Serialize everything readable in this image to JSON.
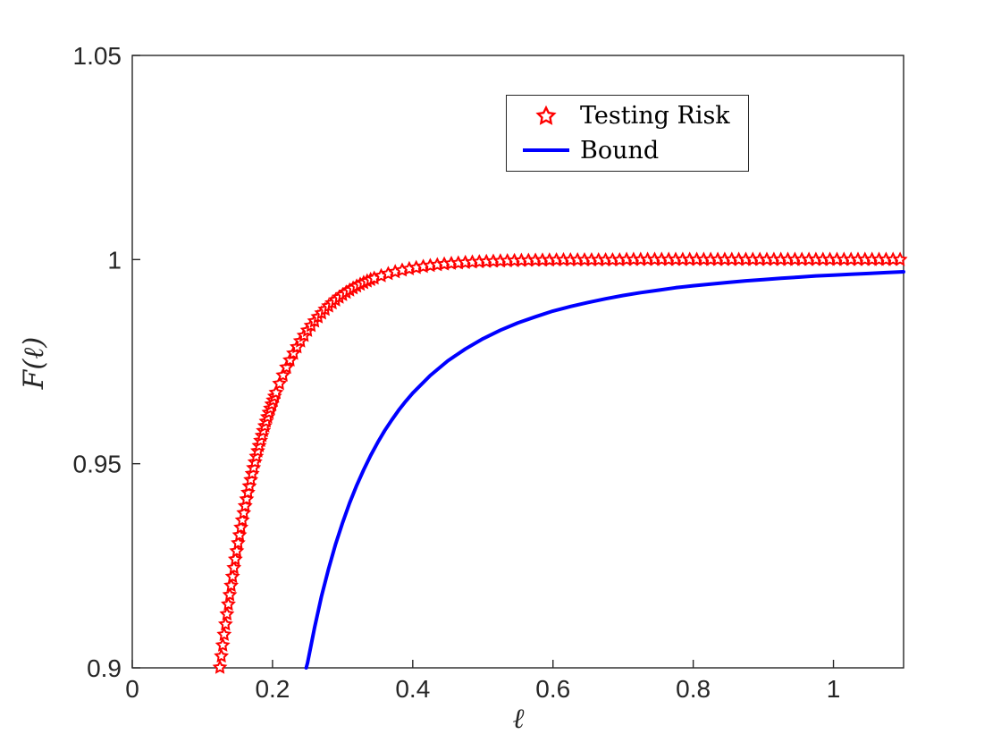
{
  "figure": {
    "background": "#ffffff",
    "axis_color": "#262626"
  },
  "chart_data": {
    "type": "line",
    "title": "",
    "xlabel": "ℓ",
    "ylabel": "F(ℓ)",
    "xlim": [
      0,
      1.1
    ],
    "ylim": [
      0.9,
      1.05
    ],
    "xticks": [
      0,
      0.2,
      0.4,
      0.6,
      0.8,
      1
    ],
    "xtick_labels": [
      "0",
      "0.2",
      "0.4",
      "0.6",
      "0.8",
      "1"
    ],
    "yticks": [
      0.9,
      0.95,
      1,
      1.05
    ],
    "ytick_labels": [
      "0.9",
      "0.95",
      "1",
      "1.05"
    ],
    "grid": false,
    "axis_color": "#262626",
    "legend": {
      "location": "top-center",
      "border": true,
      "entries": [
        "Testing Risk",
        "Bound"
      ]
    },
    "series": [
      {
        "id": "testing-risk",
        "name": "Testing Risk",
        "type": "scatter",
        "marker": "pentagram",
        "color": "#ff0000",
        "marker_size": 6.6,
        "marker_stroke": 2,
        "points": [
          [
            0.125,
            0.9001
          ],
          [
            0.127,
            0.90286
          ],
          [
            0.129,
            0.90554
          ],
          [
            0.131,
            0.90815
          ],
          [
            0.133,
            0.91068
          ],
          [
            0.135,
            0.91315
          ],
          [
            0.137,
            0.91555
          ],
          [
            0.139,
            0.91788
          ],
          [
            0.141,
            0.92015
          ],
          [
            0.143,
            0.92235
          ],
          [
            0.145,
            0.9245
          ],
          [
            0.147,
            0.92658
          ],
          [
            0.149,
            0.92861
          ],
          [
            0.151,
            0.93058
          ],
          [
            0.153,
            0.9325
          ],
          [
            0.155,
            0.93436
          ],
          [
            0.157,
            0.93617
          ],
          [
            0.159,
            0.93793
          ],
          [
            0.161,
            0.93965
          ],
          [
            0.163,
            0.94131
          ],
          [
            0.165,
            0.94294
          ],
          [
            0.167,
            0.94451
          ],
          [
            0.169,
            0.94604
          ],
          [
            0.171,
            0.94753
          ],
          [
            0.173,
            0.94898
          ],
          [
            0.175,
            0.95039
          ],
          [
            0.177,
            0.95176
          ],
          [
            0.179,
            0.95309
          ],
          [
            0.181,
            0.95439
          ],
          [
            0.183,
            0.95565
          ],
          [
            0.185,
            0.95687
          ],
          [
            0.187,
            0.95806
          ],
          [
            0.189,
            0.95922
          ],
          [
            0.191,
            0.96035
          ],
          [
            0.193,
            0.96144
          ],
          [
            0.195,
            0.96251
          ],
          [
            0.197,
            0.96354
          ],
          [
            0.199,
            0.96455
          ],
          [
            0.201,
            0.96553
          ],
          [
            0.203,
            0.96648
          ],
          [
            0.205,
            0.9674
          ],
          [
            0.21,
            0.96961
          ],
          [
            0.215,
            0.97166
          ],
          [
            0.22,
            0.97358
          ],
          [
            0.225,
            0.97536
          ],
          [
            0.23,
            0.97703
          ],
          [
            0.235,
            0.97858
          ],
          [
            0.24,
            0.98003
          ],
          [
            0.245,
            0.98138
          ],
          [
            0.25,
            0.98264
          ],
          [
            0.255,
            0.98381
          ],
          [
            0.26,
            0.98491
          ],
          [
            0.265,
            0.98593
          ],
          [
            0.27,
            0.98688
          ],
          [
            0.275,
            0.98777
          ],
          [
            0.28,
            0.98859
          ],
          [
            0.285,
            0.98936
          ],
          [
            0.29,
            0.99008
          ],
          [
            0.295,
            0.99075
          ],
          [
            0.3,
            0.99138
          ],
          [
            0.305,
            0.99196
          ],
          [
            0.31,
            0.9925
          ],
          [
            0.315,
            0.99301
          ],
          [
            0.32,
            0.99348
          ],
          [
            0.325,
            0.99392
          ],
          [
            0.33,
            0.99433
          ],
          [
            0.335,
            0.99472
          ],
          [
            0.34,
            0.99507
          ],
          [
            0.345,
            0.99541
          ],
          [
            0.355,
            0.99601
          ],
          [
            0.365,
            0.99653
          ],
          [
            0.375,
            0.99698
          ],
          [
            0.385,
            0.99738
          ],
          [
            0.395,
            0.99772
          ],
          [
            0.405,
            0.99802
          ],
          [
            0.415,
            0.99828
          ],
          [
            0.425,
            0.9985
          ],
          [
            0.435,
            0.9987
          ],
          [
            0.445,
            0.99887
          ],
          [
            0.455,
            0.99902
          ],
          [
            0.465,
            0.99914
          ],
          [
            0.475,
            0.99926
          ],
          [
            0.485,
            0.99935
          ],
          [
            0.495,
            0.99944
          ],
          [
            0.505,
            0.99951
          ],
          [
            0.515,
            0.99957
          ],
          [
            0.525,
            0.99963
          ],
          [
            0.535,
            0.99968
          ],
          [
            0.545,
            0.99972
          ],
          [
            0.555,
            0.99976
          ],
          [
            0.565,
            0.99979
          ],
          [
            0.575,
            0.99982
          ],
          [
            0.585,
            0.99984
          ],
          [
            0.595,
            0.99986
          ],
          [
            0.605,
            0.9999
          ],
          [
            0.615,
            0.9999
          ],
          [
            0.625,
            0.9999
          ],
          [
            0.635,
            0.9999
          ],
          [
            0.645,
            0.9999
          ],
          [
            0.655,
            0.9999
          ],
          [
            0.665,
            0.9999
          ],
          [
            0.675,
            0.9999
          ],
          [
            0.685,
            0.9999
          ],
          [
            0.695,
            0.9999
          ],
          [
            0.705,
            1
          ],
          [
            0.715,
            1
          ],
          [
            0.725,
            1
          ],
          [
            0.735,
            1
          ],
          [
            0.745,
            1
          ],
          [
            0.755,
            1
          ],
          [
            0.765,
            1
          ],
          [
            0.775,
            1
          ],
          [
            0.785,
            1
          ],
          [
            0.795,
            1
          ],
          [
            0.805,
            1
          ],
          [
            0.815,
            1
          ],
          [
            0.825,
            1
          ],
          [
            0.835,
            1
          ],
          [
            0.845,
            1
          ],
          [
            0.855,
            1
          ],
          [
            0.865,
            1
          ],
          [
            0.875,
            1
          ],
          [
            0.885,
            1
          ],
          [
            0.895,
            1
          ],
          [
            0.905,
            1
          ],
          [
            0.915,
            1
          ],
          [
            0.925,
            1
          ],
          [
            0.935,
            1
          ],
          [
            0.945,
            1
          ],
          [
            0.955,
            1
          ],
          [
            0.965,
            1
          ],
          [
            0.975,
            1
          ],
          [
            0.985,
            1
          ],
          [
            0.995,
            1
          ],
          [
            1.005,
            1
          ],
          [
            1.015,
            1
          ],
          [
            1.025,
            1
          ],
          [
            1.035,
            1
          ],
          [
            1.045,
            1
          ],
          [
            1.055,
            1
          ],
          [
            1.065,
            1
          ],
          [
            1.075,
            1
          ],
          [
            1.085,
            1
          ],
          [
            1.095,
            1
          ]
        ]
      },
      {
        "id": "bound",
        "name": "Bound",
        "type": "line",
        "color": "#0000ff",
        "line_width": 4,
        "points": [
          [
            0.248,
            0.9
          ],
          [
            0.25,
            0.9012
          ],
          [
            0.26,
            0.9099
          ],
          [
            0.27,
            0.9176
          ],
          [
            0.28,
            0.9243
          ],
          [
            0.29,
            0.9303
          ],
          [
            0.3,
            0.9356
          ],
          [
            0.31,
            0.9404
          ],
          [
            0.32,
            0.9447
          ],
          [
            0.33,
            0.9485
          ],
          [
            0.34,
            0.952
          ],
          [
            0.35,
            0.9552
          ],
          [
            0.36,
            0.9581
          ],
          [
            0.37,
            0.9607
          ],
          [
            0.38,
            0.9631
          ],
          [
            0.39,
            0.9653
          ],
          [
            0.4,
            0.9673
          ],
          [
            0.425,
            0.9716
          ],
          [
            0.45,
            0.9752
          ],
          [
            0.475,
            0.9781
          ],
          [
            0.5,
            0.9806
          ],
          [
            0.525,
            0.9827
          ],
          [
            0.55,
            0.9845
          ],
          [
            0.575,
            0.986
          ],
          [
            0.6,
            0.9874
          ],
          [
            0.625,
            0.9885
          ],
          [
            0.65,
            0.9895
          ],
          [
            0.675,
            0.9904
          ],
          [
            0.7,
            0.9912
          ],
          [
            0.725,
            0.9919
          ],
          [
            0.75,
            0.9925
          ],
          [
            0.775,
            0.9931
          ],
          [
            0.8,
            0.9936
          ],
          [
            0.825,
            0.994
          ],
          [
            0.85,
            0.9944
          ],
          [
            0.875,
            0.9948
          ],
          [
            0.9,
            0.9951
          ],
          [
            0.925,
            0.9954
          ],
          [
            0.95,
            0.9957
          ],
          [
            0.975,
            0.996
          ],
          [
            1,
            0.9962
          ],
          [
            1.025,
            0.9964
          ],
          [
            1.05,
            0.9966
          ],
          [
            1.075,
            0.9968
          ],
          [
            1.1,
            0.997
          ]
        ]
      }
    ]
  }
}
